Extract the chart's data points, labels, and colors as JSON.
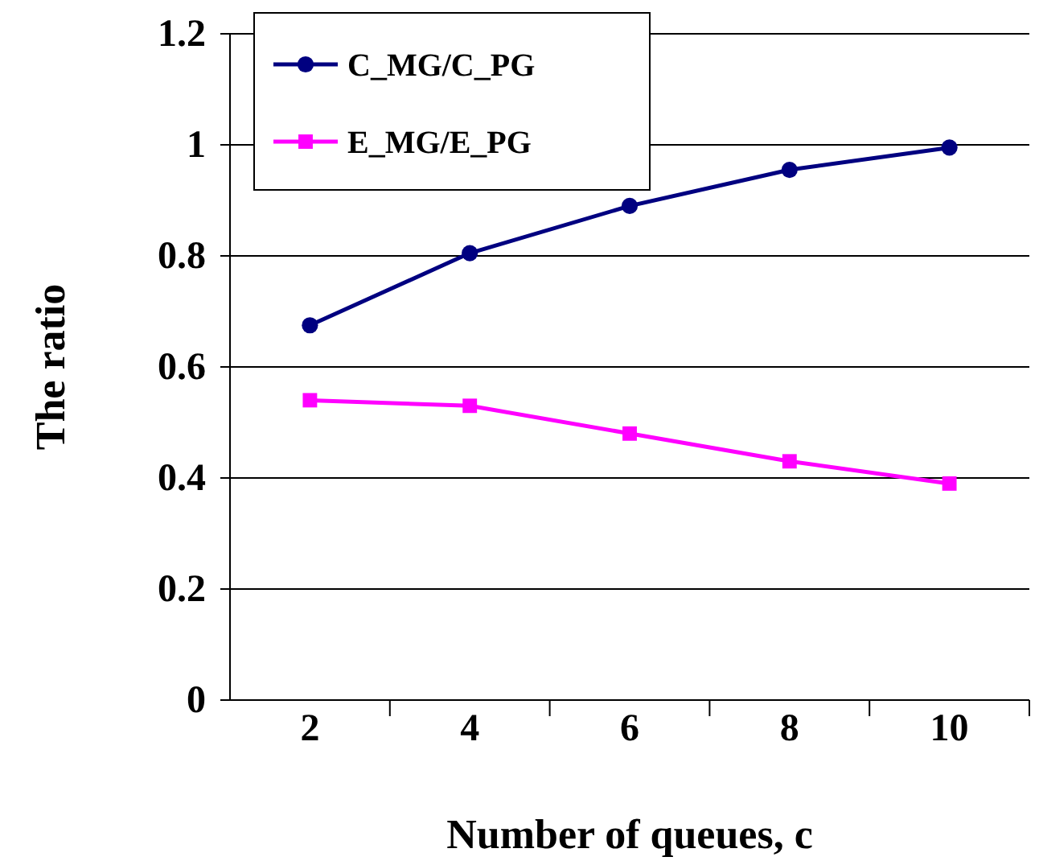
{
  "chart_data": {
    "type": "line",
    "xlabel": "Number of queues, c",
    "ylabel": "The ratio",
    "categories": [
      "2",
      "4",
      "6",
      "8",
      "10"
    ],
    "series": [
      {
        "name": "C_MG/C_PG",
        "color": "#000080",
        "marker": "circle",
        "values": [
          0.675,
          0.805,
          0.89,
          0.955,
          0.995
        ]
      },
      {
        "name": "E_MG/E_PG",
        "color": "#ff00ff",
        "marker": "square",
        "values": [
          0.54,
          0.53,
          0.48,
          0.43,
          0.39
        ]
      }
    ],
    "ylim": [
      0,
      1.2
    ],
    "yticks": [
      0,
      0.2,
      0.4,
      0.6,
      0.8,
      1,
      1.2
    ],
    "grid": "y",
    "legend": "top left"
  }
}
